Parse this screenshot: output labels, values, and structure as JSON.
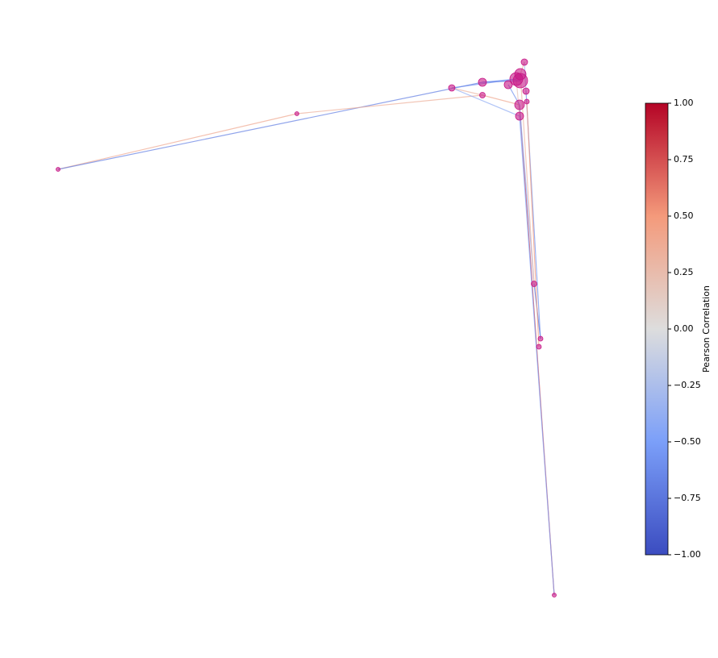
{
  "chart_data": {
    "type": "network",
    "colorbar_label": "Pearson Correlation",
    "clim": [
      -1,
      1
    ],
    "cticks": [
      {
        "value": -1,
        "label": "−1.00"
      },
      {
        "value": -0.75,
        "label": "−0.75"
      },
      {
        "value": -0.5,
        "label": "−0.50"
      },
      {
        "value": -0.25,
        "label": "−0.25"
      },
      {
        "value": 0,
        "label": "0.00"
      },
      {
        "value": 0.25,
        "label": "0.25"
      },
      {
        "value": 0.5,
        "label": "0.50"
      },
      {
        "value": 0.75,
        "label": "0.75"
      },
      {
        "value": 1,
        "label": "1.00"
      }
    ],
    "colormap": "coolwarm",
    "node_color": "#c71585",
    "edges": [
      {
        "source": 0,
        "target": 1,
        "value": 0.4
      },
      {
        "source": 0,
        "target": 3,
        "value": -0.7
      },
      {
        "source": 1,
        "target": 4,
        "value": 0.35
      },
      {
        "source": 2,
        "target": 6,
        "value": -0.6
      },
      {
        "source": 2,
        "target": 4,
        "value": 0.3
      },
      {
        "source": 3,
        "target": 6,
        "value": -0.5
      },
      {
        "source": 4,
        "target": 11,
        "value": 0.4
      },
      {
        "source": 11,
        "target": 16,
        "value": 0.8
      },
      {
        "source": 12,
        "target": 16,
        "value": -0.5
      },
      {
        "source": 11,
        "target": 13,
        "value": -0.4
      },
      {
        "source": 13,
        "target": 14,
        "value": -0.8
      },
      {
        "source": 9,
        "target": 14,
        "value": -0.6
      },
      {
        "source": 10,
        "target": 15,
        "value": 0.5
      },
      {
        "source": 6,
        "target": 12,
        "value": 0.2
      },
      {
        "source": 8,
        "target": 9,
        "value": -0.3
      },
      {
        "source": 7,
        "target": 8,
        "value": 0.3
      },
      {
        "source": 5,
        "target": 11,
        "value": -0.6
      },
      {
        "source": 3,
        "target": 17,
        "value": -0.7
      },
      {
        "source": 2,
        "target": 12,
        "value": -0.4
      },
      {
        "source": 7,
        "target": 13,
        "value": 0.3
      }
    ]
  }
}
